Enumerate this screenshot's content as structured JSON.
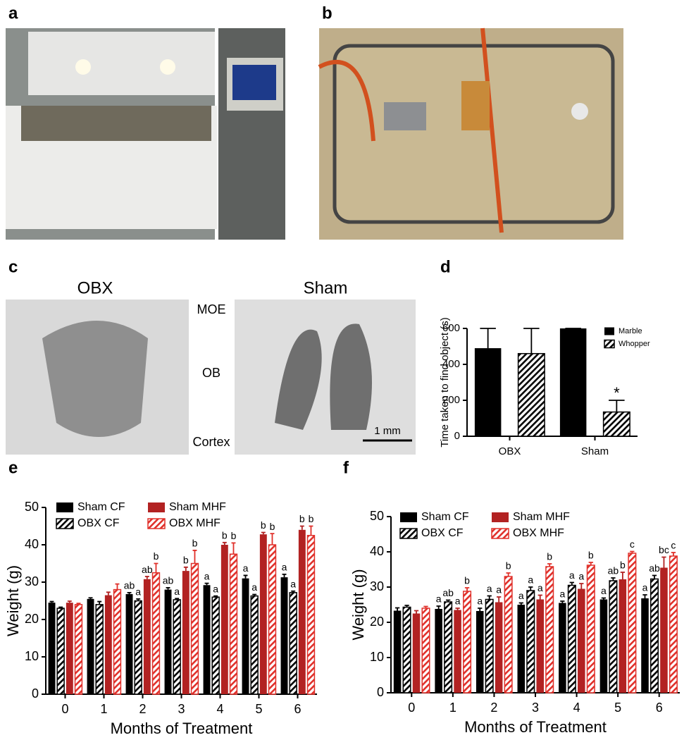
{
  "figure": {
    "panels": [
      "a",
      "b",
      "c",
      "d",
      "e",
      "f"
    ],
    "histology": {
      "left": "OBX",
      "right": "Sham",
      "regions": [
        "MOE",
        "OB",
        "Cortex"
      ],
      "scale_bar": "1 mm"
    }
  },
  "chart_data": [
    {
      "type": "bar",
      "ylabel": "Time taken to find object (s)",
      "categories": [
        "OBX",
        "Sham"
      ],
      "series": [
        {
          "name": "Marble",
          "color": "#000000",
          "hatch": false,
          "values": [
            490,
            600
          ],
          "errors": [
            110,
            0
          ]
        },
        {
          "name": "Whopper",
          "color": "#000000",
          "hatch": true,
          "values": [
            460,
            135
          ],
          "errors": [
            140,
            65
          ],
          "letters": [
            null,
            "*"
          ]
        }
      ],
      "ylim": [
        0,
        600
      ],
      "yticks": [
        0,
        200,
        400,
        600
      ]
    },
    {
      "type": "bar",
      "xlabel": "Months of Treatment",
      "ylabel": "Weight (g)",
      "categories": [
        "0",
        "1",
        "2",
        "3",
        "4",
        "5",
        "6"
      ],
      "series": [
        {
          "name": "Sham CF",
          "color": "#000000",
          "hatch": false,
          "values": [
            24.5,
            25.5,
            26.8,
            28,
            29.2,
            31,
            31.3
          ],
          "errors": [
            0.3,
            0.3,
            0.4,
            0.5,
            0.5,
            0.8,
            0.8
          ],
          "letters": [
            null,
            null,
            "ab",
            "ab",
            "a",
            "a",
            "a"
          ]
        },
        {
          "name": "OBX CF",
          "color": "#000000",
          "hatch": true,
          "values": [
            23,
            24,
            25,
            25.3,
            26,
            26.3,
            27.2
          ],
          "errors": [
            0.3,
            0.8,
            0.5,
            0.3,
            0.3,
            0.4,
            0.4
          ],
          "letters": [
            null,
            null,
            "a",
            "a",
            "a",
            "a",
            "a"
          ]
        },
        {
          "name": "Sham MHF",
          "color": "#b22222",
          "hatch": false,
          "values": [
            24.5,
            26.5,
            30.8,
            33,
            40,
            42.8,
            44
          ],
          "errors": [
            0.4,
            0.8,
            0.7,
            1,
            0.6,
            0.5,
            1
          ],
          "letters": [
            null,
            null,
            "ab",
            "b",
            "b",
            "b",
            "b"
          ]
        },
        {
          "name": "OBX MHF",
          "color": "#e0302a",
          "hatch": true,
          "values": [
            24,
            28,
            32.5,
            35,
            37.5,
            40,
            42.5
          ],
          "errors": [
            0.3,
            1.5,
            2.5,
            3.5,
            3,
            3,
            2.5
          ],
          "letters": [
            null,
            null,
            "b",
            "b",
            "b",
            "b",
            "b"
          ]
        }
      ],
      "ylim": [
        0,
        50
      ],
      "yticks": [
        0,
        10,
        20,
        30,
        40,
        50
      ]
    },
    {
      "type": "bar",
      "xlabel": "Months of Treatment",
      "ylabel": "Weight (g)",
      "categories": [
        "0",
        "1",
        "2",
        "3",
        "4",
        "5",
        "6"
      ],
      "series": [
        {
          "name": "Sham CF",
          "color": "#000000",
          "hatch": false,
          "values": [
            23.3,
            23.8,
            23.2,
            25,
            25.5,
            26.5,
            26.8
          ],
          "errors": [
            0.8,
            0.8,
            0.8,
            0.5,
            0.5,
            0.4,
            1
          ],
          "letters": [
            null,
            "a",
            "a",
            "a",
            "a",
            "a",
            "a"
          ]
        },
        {
          "name": "OBX CF",
          "color": "#000000",
          "hatch": true,
          "values": [
            24.3,
            25.8,
            26.5,
            29,
            30.5,
            31.8,
            32.3
          ],
          "errors": [
            0.5,
            0.5,
            1,
            1,
            0.8,
            0.8,
            1
          ],
          "letters": [
            null,
            "ab",
            "a",
            "a",
            "a",
            "ab",
            "ab"
          ]
        },
        {
          "name": "Sham MHF",
          "color": "#b22222",
          "hatch": false,
          "values": [
            22.5,
            23.5,
            25.7,
            26.5,
            29.5,
            32.2,
            35.5
          ],
          "errors": [
            0.8,
            0.5,
            1.5,
            1.2,
            1.5,
            2,
            3
          ],
          "letters": [
            null,
            "a",
            "a",
            "a",
            "a",
            "b",
            "bc"
          ]
        },
        {
          "name": "OBX MHF",
          "color": "#e0302a",
          "hatch": true,
          "values": [
            24,
            28.8,
            33,
            35.8,
            36.2,
            39.6,
            38.8
          ],
          "errors": [
            0.5,
            1,
            1,
            0.8,
            0.8,
            0.5,
            1
          ],
          "letters": [
            null,
            "b",
            "b",
            "b",
            "b",
            "c",
            "c"
          ]
        }
      ],
      "ylim": [
        0,
        50
      ],
      "yticks": [
        0,
        10,
        20,
        30,
        40,
        50
      ]
    }
  ]
}
